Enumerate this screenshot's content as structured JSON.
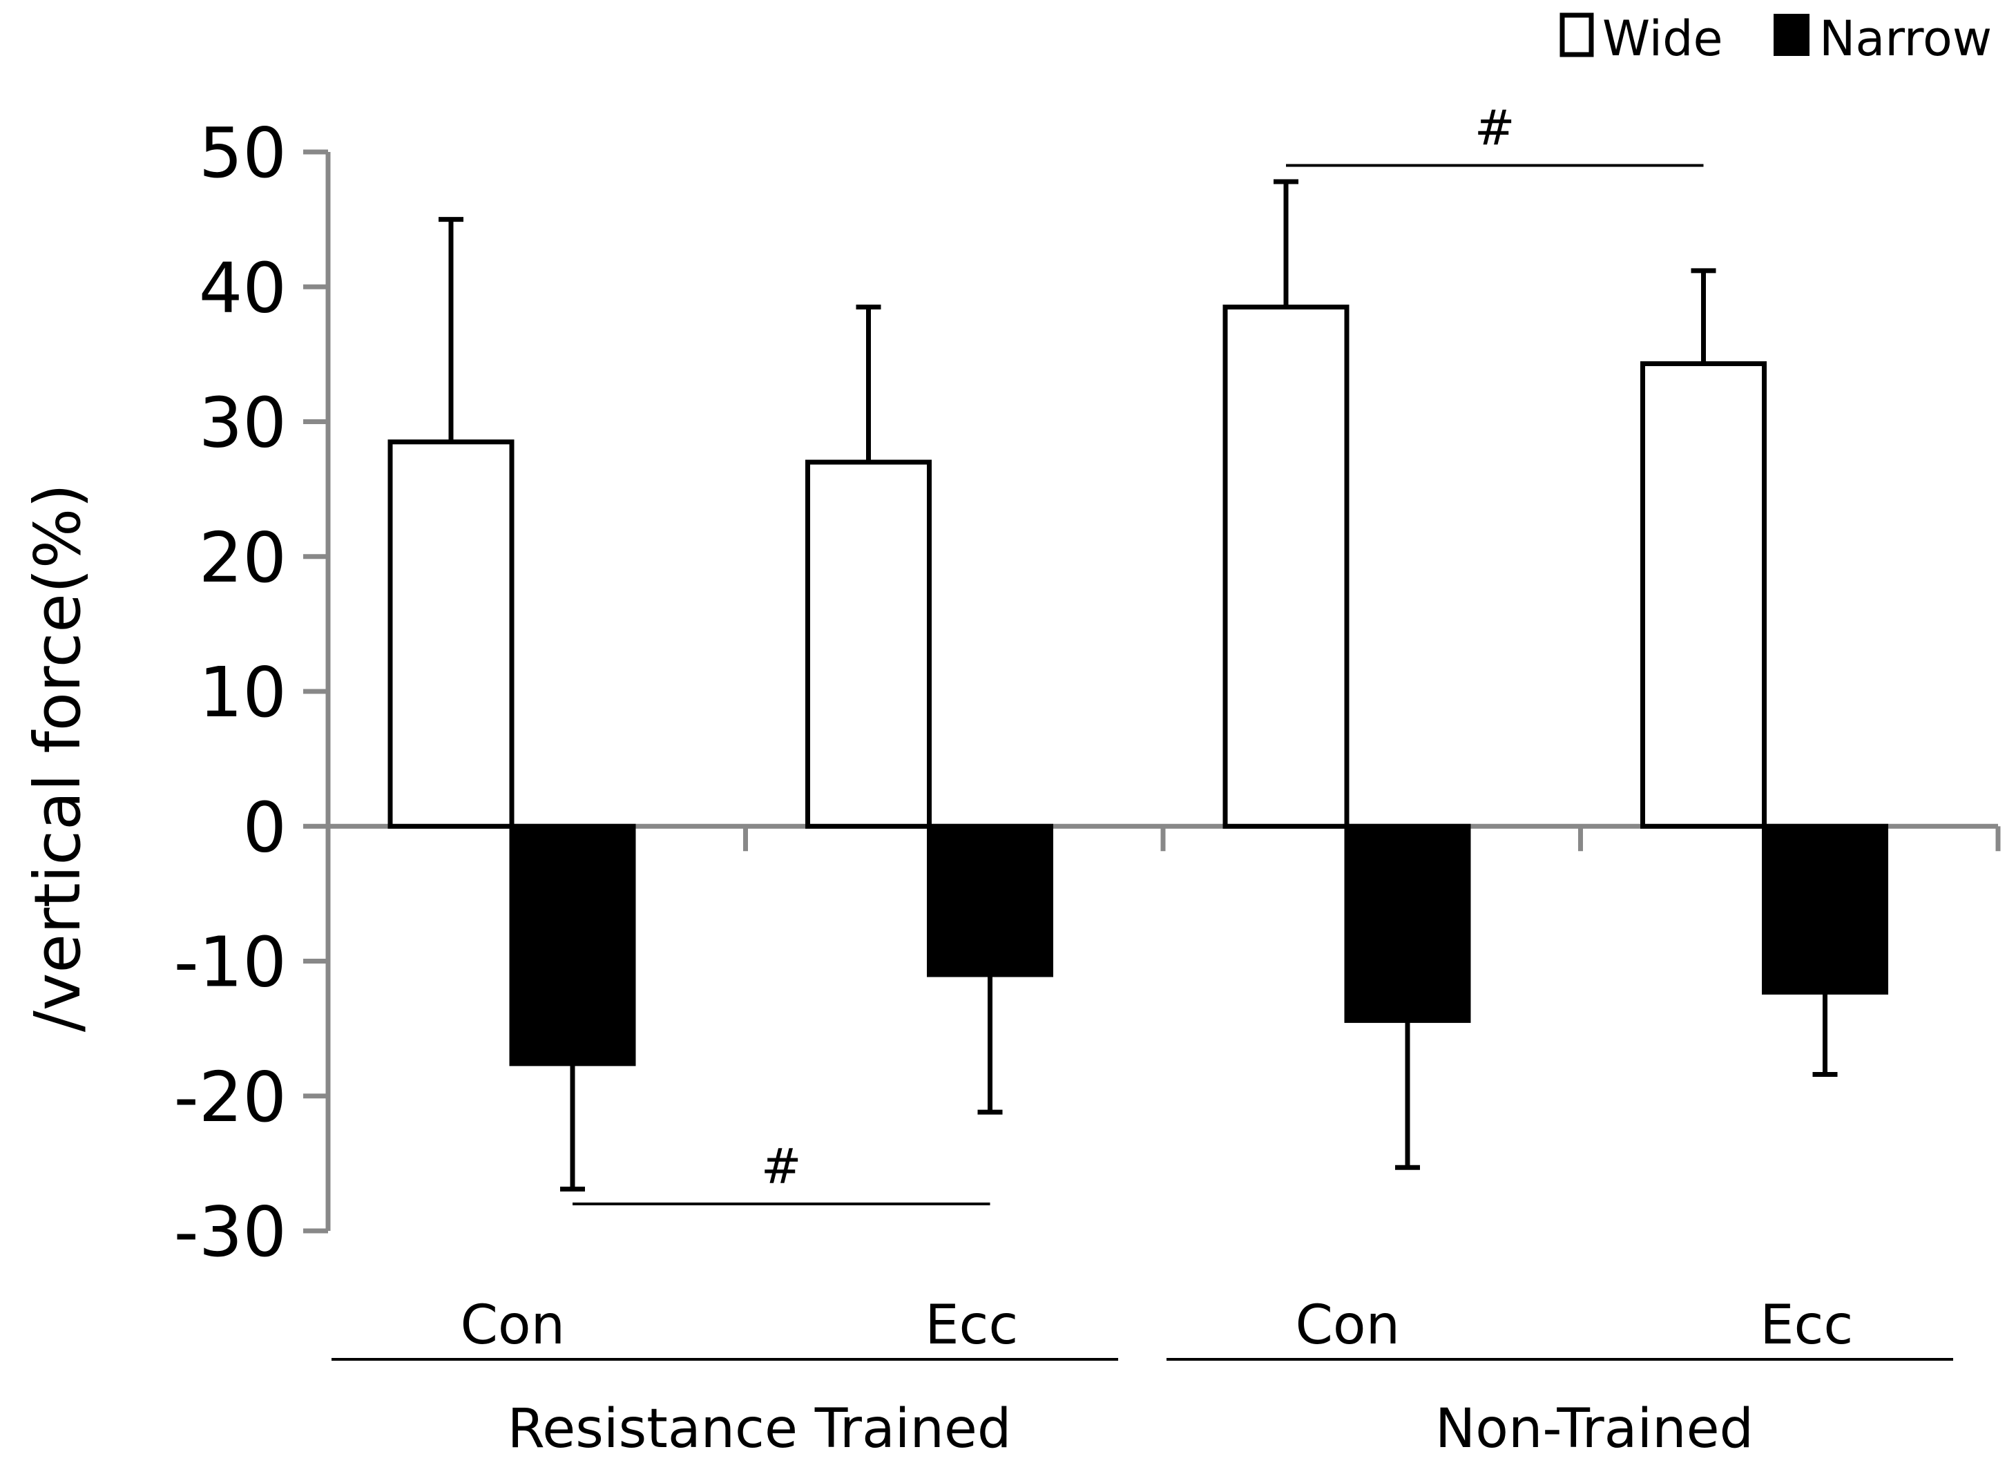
{
  "chart_data": {
    "type": "bar",
    "title": "",
    "xlabel": "",
    "ylabel": "/vertical force(%)",
    "ylim": [
      -30,
      50
    ],
    "yticks": [
      "50",
      "40",
      "30",
      "20",
      "10",
      "0",
      "-10",
      "-20",
      "-30"
    ],
    "ytick_values": [
      50,
      40,
      30,
      20,
      10,
      0,
      -10,
      -20,
      -30
    ],
    "categories": [
      "Con",
      "Ecc",
      "Con",
      "Ecc"
    ],
    "groups": [
      {
        "label": "Resistance Trained",
        "categories": [
          0,
          1
        ]
      },
      {
        "label": "Non-Trained",
        "categories": [
          2,
          3
        ]
      }
    ],
    "legend_position": "top-right",
    "grid": false,
    "series": [
      {
        "name": "Wide",
        "color": "#ffffff",
        "values": [
          28.5,
          27,
          38.5,
          34.3
        ],
        "errors": [
          16.5,
          11.5,
          9.3,
          6.9
        ]
      },
      {
        "name": "Narrow",
        "color": "#000000",
        "values": [
          -17.6,
          -11,
          -14.4,
          -12.3
        ],
        "errors": [
          9.3,
          10.2,
          10.9,
          6.1
        ]
      }
    ],
    "annotations": [
      {
        "text": "#",
        "from": {
          "category": 0,
          "series": "Narrow"
        },
        "to": {
          "category": 1,
          "series": "Narrow"
        },
        "y": -28
      },
      {
        "text": "#",
        "from": {
          "category": 2,
          "series": "Wide"
        },
        "to": {
          "category": 3,
          "series": "Wide"
        },
        "y": 49
      }
    ]
  }
}
